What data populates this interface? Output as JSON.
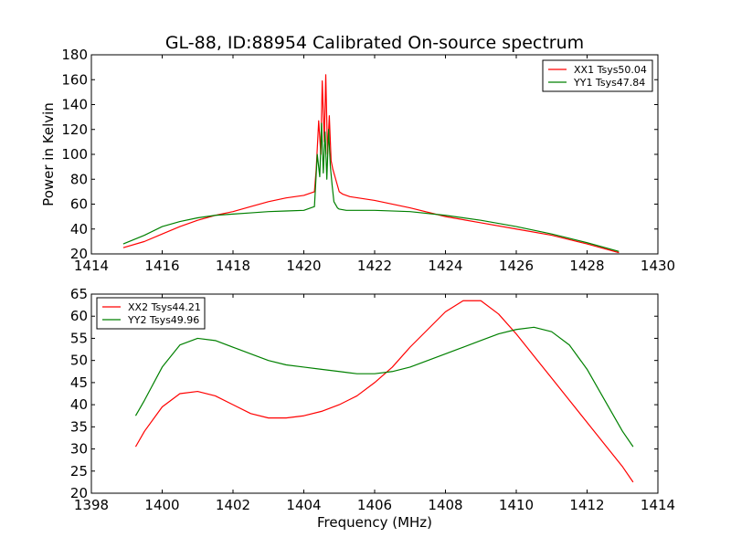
{
  "figure": {
    "title": "GL-88, ID:88954 Calibrated On-source spectrum",
    "background": "#ffffff"
  },
  "chart_data": [
    {
      "type": "line",
      "title": "GL-88, ID:88954 Calibrated On-source spectrum",
      "xlabel": "",
      "ylabel": "Power in Kelvin",
      "xlim": [
        1414,
        1430
      ],
      "ylim": [
        20,
        180
      ],
      "xticks": [
        1414,
        1416,
        1418,
        1420,
        1422,
        1424,
        1426,
        1428,
        1430
      ],
      "yticks": [
        20,
        40,
        60,
        80,
        100,
        120,
        140,
        160,
        180
      ],
      "grid": false,
      "legend_position": "top-right",
      "series": [
        {
          "name": "XX1 Tsys50.04",
          "color": "#ff0000",
          "x": [
            1414.9,
            1415.5,
            1416.0,
            1416.5,
            1417.0,
            1417.5,
            1418.0,
            1418.5,
            1419.0,
            1419.5,
            1420.0,
            1420.3,
            1420.35,
            1420.42,
            1420.48,
            1420.52,
            1420.58,
            1420.62,
            1420.67,
            1420.72,
            1420.77,
            1420.82,
            1420.9,
            1421.0,
            1421.1,
            1421.3,
            1422.0,
            1423.0,
            1424.0,
            1425.0,
            1426.0,
            1427.0,
            1428.0,
            1428.9
          ],
          "y": [
            25,
            30,
            36,
            42,
            47,
            51,
            54,
            58,
            62,
            65,
            67,
            70,
            88,
            127,
            100,
            159,
            110,
            164,
            100,
            131,
            95,
            88,
            80,
            70,
            68,
            66,
            63,
            57,
            50,
            45,
            40,
            35,
            28,
            21
          ]
        },
        {
          "name": "YY1 Tsys47.84",
          "color": "#008000",
          "x": [
            1414.9,
            1415.5,
            1416.0,
            1416.5,
            1417.0,
            1417.5,
            1418.0,
            1418.5,
            1419.0,
            1419.5,
            1420.0,
            1420.3,
            1420.38,
            1420.45,
            1420.5,
            1420.55,
            1420.6,
            1420.65,
            1420.7,
            1420.75,
            1420.8,
            1420.85,
            1420.95,
            1421.0,
            1421.2,
            1422.0,
            1423.0,
            1424.0,
            1425.0,
            1426.0,
            1427.0,
            1428.0,
            1428.9
          ],
          "y": [
            28,
            35,
            42,
            46,
            49,
            51,
            52,
            53,
            54,
            54.5,
            55,
            58,
            100,
            82,
            125,
            85,
            118,
            80,
            120,
            90,
            75,
            62,
            57,
            56,
            55,
            55,
            54,
            51,
            47,
            42,
            36,
            29,
            22
          ]
        }
      ]
    },
    {
      "type": "line",
      "title": "",
      "xlabel": "Frequency (MHz)",
      "ylabel": "",
      "xlim": [
        1398,
        1414
      ],
      "ylim": [
        20,
        65
      ],
      "xticks": [
        1398,
        1400,
        1402,
        1404,
        1406,
        1408,
        1410,
        1412,
        1414
      ],
      "yticks": [
        20,
        25,
        30,
        35,
        40,
        45,
        50,
        55,
        60,
        65
      ],
      "grid": false,
      "legend_position": "top-left",
      "series": [
        {
          "name": "XX2 Tsys44.21",
          "color": "#ff0000",
          "x": [
            1399.25,
            1399.5,
            1400.0,
            1400.5,
            1401.0,
            1401.5,
            1402.0,
            1402.5,
            1403.0,
            1403.5,
            1404.0,
            1404.5,
            1405.0,
            1405.5,
            1406.0,
            1406.5,
            1407.0,
            1407.5,
            1408.0,
            1408.5,
            1409.0,
            1409.5,
            1410.0,
            1410.5,
            1411.0,
            1411.5,
            1412.0,
            1412.5,
            1413.0,
            1413.3
          ],
          "y": [
            30.5,
            34,
            39.5,
            42.5,
            43,
            42,
            40,
            38,
            37,
            37,
            37.5,
            38.5,
            40,
            42,
            45,
            48.5,
            53,
            57,
            61,
            63.5,
            63.5,
            60.5,
            56,
            51,
            46,
            41,
            36,
            31,
            26,
            22.5
          ]
        },
        {
          "name": "YY2 Tsys49.96",
          "color": "#008000",
          "x": [
            1399.25,
            1399.5,
            1400.0,
            1400.5,
            1401.0,
            1401.5,
            1402.0,
            1402.5,
            1403.0,
            1403.5,
            1404.0,
            1404.5,
            1405.0,
            1405.5,
            1406.0,
            1406.5,
            1407.0,
            1407.5,
            1408.0,
            1408.5,
            1409.0,
            1409.5,
            1410.0,
            1410.5,
            1411.0,
            1411.5,
            1412.0,
            1412.5,
            1413.0,
            1413.3
          ],
          "y": [
            37.5,
            41,
            48.5,
            53.5,
            55,
            54.5,
            53,
            51.5,
            50,
            49,
            48.5,
            48,
            47.5,
            47,
            47,
            47.5,
            48.5,
            50,
            51.5,
            53,
            54.5,
            56,
            57,
            57.5,
            56.5,
            53.5,
            48,
            41,
            34,
            30.5
          ]
        }
      ]
    }
  ]
}
